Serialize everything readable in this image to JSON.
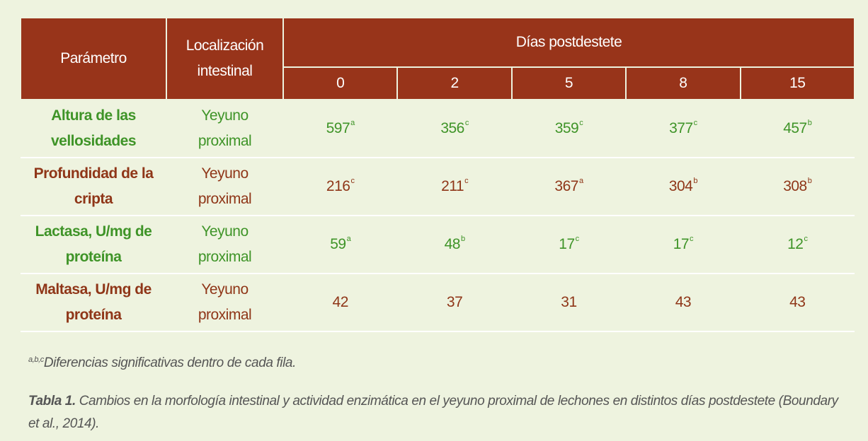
{
  "header": {
    "parametro": "Parámetro",
    "localizacion_1": "Localización",
    "localizacion_2": "intestinal",
    "dias": "Días postdestete",
    "days": [
      "0",
      "2",
      "5",
      "8",
      "15"
    ]
  },
  "rows": [
    {
      "param_1": "Altura de las",
      "param_2": "vellosidades",
      "loc_1": "Yeyuno",
      "loc_2": "proximal",
      "values": [
        {
          "v": "597",
          "s": "a"
        },
        {
          "v": "356",
          "s": "c"
        },
        {
          "v": "359",
          "s": "c"
        },
        {
          "v": "377",
          "s": "c"
        },
        {
          "v": "457",
          "s": "b"
        }
      ]
    },
    {
      "param_1": "Profundidad de la",
      "param_2": "cripta",
      "loc_1": "Yeyuno",
      "loc_2": "proximal",
      "values": [
        {
          "v": "216",
          "s": "c"
        },
        {
          "v": "211",
          "s": "c"
        },
        {
          "v": "367",
          "s": "a"
        },
        {
          "v": "304",
          "s": "b"
        },
        {
          "v": "308",
          "s": "b"
        }
      ]
    },
    {
      "param_1": "Lactasa, U/mg de",
      "param_2": "proteína",
      "loc_1": "Yeyuno",
      "loc_2": "proximal",
      "values": [
        {
          "v": "59",
          "s": "a"
        },
        {
          "v": "48",
          "s": "b"
        },
        {
          "v": "17",
          "s": "c"
        },
        {
          "v": "17",
          "s": "c"
        },
        {
          "v": "12",
          "s": "c"
        }
      ]
    },
    {
      "param_1": "Maltasa, U/mg de",
      "param_2": "proteína",
      "loc_1": "Yeyuno",
      "loc_2": "proximal",
      "values": [
        {
          "v": "42",
          "s": ""
        },
        {
          "v": "37",
          "s": ""
        },
        {
          "v": "31",
          "s": ""
        },
        {
          "v": "43",
          "s": ""
        },
        {
          "v": "43",
          "s": ""
        }
      ]
    }
  ],
  "footnote": {
    "sup": "a,b,c",
    "text": "Diferencias significativas dentro de cada fila."
  },
  "caption": {
    "label": "Tabla 1.",
    "text": " Cambios en la morfología intestinal y actividad enzimática en el yeyuno proximal de lechones en distintos días postdestete (Boundary et al., 2014)."
  },
  "colors": {
    "header_bg": "#98341a",
    "green_text": "#3f9428",
    "red_text": "#8f3618",
    "background": "#eef3df"
  }
}
